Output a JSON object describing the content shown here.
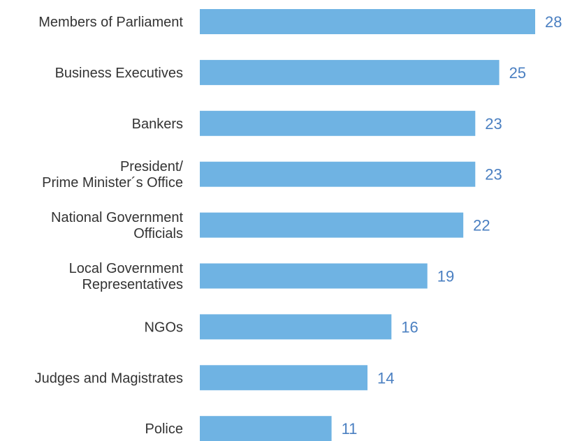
{
  "chart_data": {
    "type": "bar",
    "orientation": "horizontal",
    "categories": [
      [
        "Members of Parliament"
      ],
      [
        "Business Executives"
      ],
      [
        "Bankers"
      ],
      [
        "President/",
        "Prime Minister´s Office"
      ],
      [
        "National Government",
        "Officials"
      ],
      [
        "Local Government",
        "Representatives"
      ],
      [
        "NGOs"
      ],
      [
        "Judges and Magistrates"
      ],
      [
        "Police"
      ]
    ],
    "values": [
      28,
      25,
      23,
      23,
      22,
      19,
      16,
      14,
      11
    ],
    "value_labels": [
      "28",
      "25",
      "23",
      "23",
      "22",
      "19",
      "16",
      "14",
      "11"
    ],
    "title": "",
    "xlabel": "",
    "ylabel": "",
    "xlim": [
      0,
      28
    ],
    "grid": false,
    "legend": "none",
    "colors": {
      "bar": "#6fb3e3",
      "value_label": "#4a7fc1",
      "category_label": "#333333"
    }
  }
}
